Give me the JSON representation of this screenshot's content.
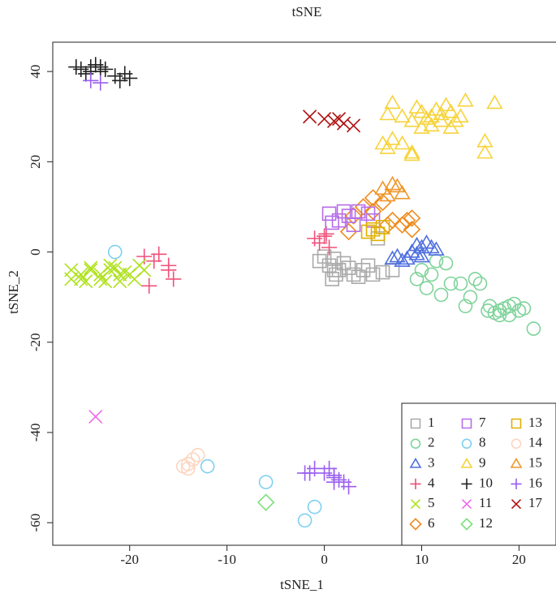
{
  "chart_data": {
    "type": "scatter",
    "title": "tSNE",
    "x_label": "tSNE_1",
    "y_label": "tSNE_2",
    "xlim": [
      -27.9,
      23.8
    ],
    "ylim": [
      -65,
      46.5
    ],
    "xticks": [
      -20,
      -10,
      0,
      10,
      20
    ],
    "yticks": [
      -60,
      -40,
      -20,
      0,
      20,
      40
    ],
    "legend": "bottom-right",
    "grid": false,
    "series": [
      {
        "name": "1",
        "color": "#aaaaaa",
        "marker": "square",
        "x": [
          -0.5,
          0.5,
          1.5,
          2,
          3,
          4,
          5,
          6,
          7,
          1,
          2.5,
          3.5,
          5.5,
          0,
          1.2,
          4.5,
          1,
          0.8
        ],
        "y": [
          -2,
          -3,
          -4,
          -2.5,
          -5,
          -4,
          -5,
          -4.5,
          -4,
          -1.5,
          -3.5,
          -5.5,
          3,
          -1,
          -5,
          -3,
          -4,
          -6
        ]
      },
      {
        "name": "2",
        "color": "#7fd39a",
        "marker": "circle",
        "x": [
          11.5,
          12.5,
          10,
          11,
          9.5,
          10.5,
          12,
          13,
          14,
          15.5,
          16,
          15,
          14.5,
          21.5,
          17,
          18,
          19,
          20,
          18,
          19,
          17.5,
          19.5,
          18.5,
          20.5,
          16.8
        ],
        "y": [
          -2,
          -2.5,
          -4,
          -5,
          -6,
          -8,
          -9.5,
          -7,
          -7,
          -6,
          -7,
          -10,
          -12,
          -17,
          -12,
          -13,
          -12,
          -13,
          -14,
          -14,
          -13.5,
          -11.5,
          -12.5,
          -12.5,
          -13
        ]
      },
      {
        "name": "3",
        "color": "#4f6fe0",
        "marker": "triangle",
        "x": [
          7.5,
          8.5,
          9,
          10,
          10.5,
          11,
          9.5,
          8,
          10,
          11.5,
          7,
          9.5
        ],
        "y": [
          -1,
          -1.5,
          0,
          1,
          2,
          1,
          -0.5,
          -2,
          -1,
          0.5,
          -1.5,
          1.5
        ]
      },
      {
        "name": "4",
        "color": "#f0507a",
        "marker": "plus",
        "x": [
          -1,
          0,
          -0.5,
          0.5,
          0.2,
          -18.5,
          -17.5,
          -16,
          -15.5,
          -18,
          -17,
          -16
        ],
        "y": [
          3,
          3.5,
          2,
          1,
          4,
          -1,
          -2,
          -3,
          -6,
          -7.5,
          -0.5,
          -4
        ]
      },
      {
        "name": "5",
        "color": "#aee21a",
        "marker": "x",
        "x": [
          -26,
          -25,
          -24,
          -23,
          -22,
          -21,
          -25,
          -23,
          -21,
          -24,
          -22,
          -20.5,
          -19,
          -18.5,
          -19.5,
          -20,
          -26,
          -24.5,
          -22.5,
          -21.5
        ],
        "y": [
          -4,
          -5,
          -4,
          -5,
          -4,
          -5,
          -6,
          -6,
          -6.5,
          -3.5,
          -3,
          -4.5,
          -3,
          -4,
          -6,
          -5,
          -6,
          -6.5,
          -6.5,
          -3.5
        ]
      },
      {
        "name": "6",
        "color": "#f08a1c",
        "marker": "diamond",
        "x": [
          3,
          4,
          5,
          6,
          7,
          8,
          9,
          8.5,
          6.5,
          2.5,
          9,
          5
        ],
        "y": [
          8,
          10,
          12,
          11,
          7,
          6,
          5,
          7,
          6,
          4.5,
          7.5,
          9
        ]
      },
      {
        "name": "7",
        "color": "#b66ee8",
        "marker": "square",
        "x": [
          0.5,
          1.5,
          2.5,
          3.5,
          4.5,
          5,
          0.8,
          2,
          3
        ],
        "y": [
          8.5,
          7,
          8,
          9,
          8.5,
          7,
          6.5,
          9,
          6
        ]
      },
      {
        "name": "8",
        "color": "#7fd0f0",
        "marker": "circle",
        "x": [
          -21.5,
          -12,
          -6,
          -1,
          -2
        ],
        "y": [
          0,
          -47.5,
          -51,
          -56.5,
          -59.5
        ]
      },
      {
        "name": "9",
        "color": "#f7d33a",
        "marker": "triangle",
        "x": [
          8,
          9,
          10,
          11,
          12,
          13,
          14,
          9.5,
          12.5,
          11,
          13,
          10,
          7,
          6.5,
          6,
          7,
          8,
          6.5,
          9,
          14.5,
          17.5,
          16.5,
          16.5,
          9,
          11.5,
          10.5,
          12,
          13.5
        ],
        "y": [
          30,
          29,
          31,
          30,
          29,
          31,
          30,
          32,
          32.5,
          28,
          27.5,
          27.5,
          33,
          30.5,
          24,
          25,
          24,
          23,
          22,
          33.5,
          33,
          24.5,
          22,
          21.5,
          31.5,
          29.5,
          30.5,
          29
        ]
      },
      {
        "name": "10",
        "color": "#222222",
        "marker": "plus",
        "x": [
          -25,
          -24,
          -23,
          -24.5,
          -23.5,
          -22.5,
          -25.5,
          -21.5,
          -20.5,
          -20,
          -21,
          -24,
          -23
        ],
        "y": [
          40.5,
          41,
          40,
          39.5,
          41.5,
          40.5,
          41,
          39,
          39.5,
          38.5,
          38,
          40,
          41
        ]
      },
      {
        "name": "11",
        "color": "#f06ae8",
        "marker": "x",
        "x": [
          -23.5
        ],
        "y": [
          -36.5
        ]
      },
      {
        "name": "12",
        "color": "#7be07b",
        "marker": "diamond",
        "x": [
          -6
        ],
        "y": [
          -55.5
        ]
      },
      {
        "name": "13",
        "color": "#e0b000",
        "marker": "square",
        "x": [
          5,
          5.5,
          6,
          4.5
        ],
        "y": [
          5,
          4,
          5.5,
          4.5
        ]
      },
      {
        "name": "14",
        "color": "#fdd5c0",
        "marker": "circle",
        "x": [
          -14,
          -13.5,
          -14.5,
          -13,
          -14
        ],
        "y": [
          -47,
          -46,
          -47.5,
          -45,
          -48
        ]
      },
      {
        "name": "15",
        "color": "#f0962a",
        "marker": "triangle",
        "x": [
          6,
          7,
          7.5,
          6.5,
          8
        ],
        "y": [
          14,
          15,
          14.5,
          12.5,
          13
        ]
      },
      {
        "name": "16",
        "color": "#9a5ef0",
        "marker": "plus",
        "x": [
          -24,
          -23,
          -2,
          -1,
          0,
          1,
          2,
          1,
          0.5,
          2.5,
          1.5,
          -1.5,
          1
        ],
        "y": [
          38,
          37.5,
          -49,
          -48,
          -49,
          -50,
          -51,
          -49.5,
          -48,
          -52,
          -50.5,
          -49,
          -51
        ]
      },
      {
        "name": "17",
        "color": "#b01010",
        "marker": "x",
        "x": [
          -1.5,
          0,
          1,
          2,
          3,
          1.5
        ],
        "y": [
          30,
          29.5,
          29,
          28.5,
          28,
          29.5
        ]
      }
    ]
  }
}
